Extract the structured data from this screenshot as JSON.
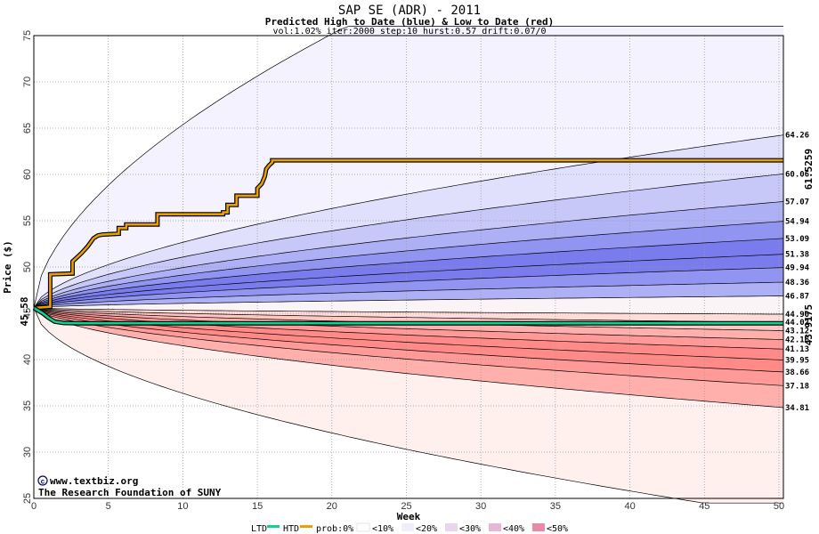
{
  "chart_data": {
    "type": "area",
    "title": "SAP SE (ADR) - 2011",
    "subtitle": "Predicted High to Date (blue) &  Low to Date (red)",
    "params": "vol:1.02% iter:2000 step:10 hurst:0.57 drift:0.07/0",
    "xlabel": "Week",
    "ylabel": "Price ($)",
    "xlim": [
      0,
      50
    ],
    "ylim": [
      25,
      75
    ],
    "x_ticks": [
      0,
      5,
      10,
      15,
      20,
      25,
      30,
      35,
      40,
      45,
      50
    ],
    "y_ticks": [
      25,
      30,
      35,
      40,
      45,
      50,
      55,
      60,
      65,
      70,
      75
    ],
    "start_price": "45.58",
    "start_value": 45.58,
    "grid": true,
    "credit": [
      "www.textbiz.org",
      "The Research Foundation of SUNY"
    ],
    "actual_high_label": "61.5259",
    "actual_low_label": "43.9175",
    "actual_high_value": 61.53,
    "actual_low_value": 43.92,
    "outer_high_end": 75,
    "outer_low_end": 25,
    "high_quantiles": [
      64.26,
      60.06,
      57.07,
      54.94,
      53.09,
      51.38,
      49.94,
      48.36,
      46.87
    ],
    "low_quantiles": [
      44.9,
      44.02,
      43.12,
      42.16,
      41.13,
      39.95,
      38.66,
      37.18,
      34.81
    ],
    "end_labels": [
      "64.26",
      "60.06",
      "57.07",
      "54.94",
      "53.09",
      "51.38",
      "49.94",
      "48.36",
      "46.87",
      "44.90",
      "44.02",
      "43.12",
      "42.16",
      "41.13",
      "39.95",
      "38.66",
      "37.18",
      "34.81"
    ],
    "series": [
      {
        "name": "HTD",
        "color": "#e8a000",
        "x": [
          0,
          1.1,
          1.1,
          2.6,
          2.6,
          3.2,
          3.6,
          4.0,
          4.3,
          4.6,
          5.7,
          5.7,
          6.2,
          6.2,
          8.3,
          8.3,
          12.7,
          12.7,
          13.0,
          13.0,
          13.6,
          13.6,
          15.0,
          15.0,
          15.3,
          15.5,
          15.6,
          15.8,
          16.0,
          16.0,
          50.3
        ],
        "y": [
          45.58,
          45.7,
          49.2,
          49.3,
          50.6,
          51.5,
          52.2,
          53.1,
          53.4,
          53.5,
          53.6,
          54.2,
          54.2,
          54.6,
          54.6,
          55.7,
          55.7,
          55.9,
          55.9,
          56.7,
          56.7,
          57.7,
          57.7,
          58.5,
          59.0,
          59.8,
          60.6,
          61.0,
          61.3,
          61.53,
          61.53
        ]
      },
      {
        "name": "LTD",
        "color": "#10d090",
        "x": [
          0,
          0.6,
          1.0,
          1.4,
          2.0,
          3.0,
          50.3
        ],
        "y": [
          45.58,
          45.0,
          44.5,
          44.1,
          43.95,
          43.92,
          43.92
        ]
      }
    ],
    "legend": {
      "ltd": "LTD",
      "htd": "HTD",
      "prob": "prob:0%",
      "b10": "<10%",
      "b20": "<20%",
      "b30": "<30%",
      "b40": "<40%",
      "b50": "<50%"
    },
    "colors": {
      "band_blue": [
        "#f4f2fe",
        "#e0e0fc",
        "#c8c8f8",
        "#aeb0f6",
        "#9294f2",
        "#7a7cee"
      ],
      "band_red": [
        "#fff0ee",
        "#ffdcd8",
        "#ffc6c2",
        "#ffb0ac",
        "#ff9a98",
        "#ff8a88"
      ],
      "htd": "#e8a000",
      "ltd": "#10d090",
      "high_label": "#b8860b",
      "low_label": "#0a8a5a",
      "credit": "#000080"
    }
  }
}
